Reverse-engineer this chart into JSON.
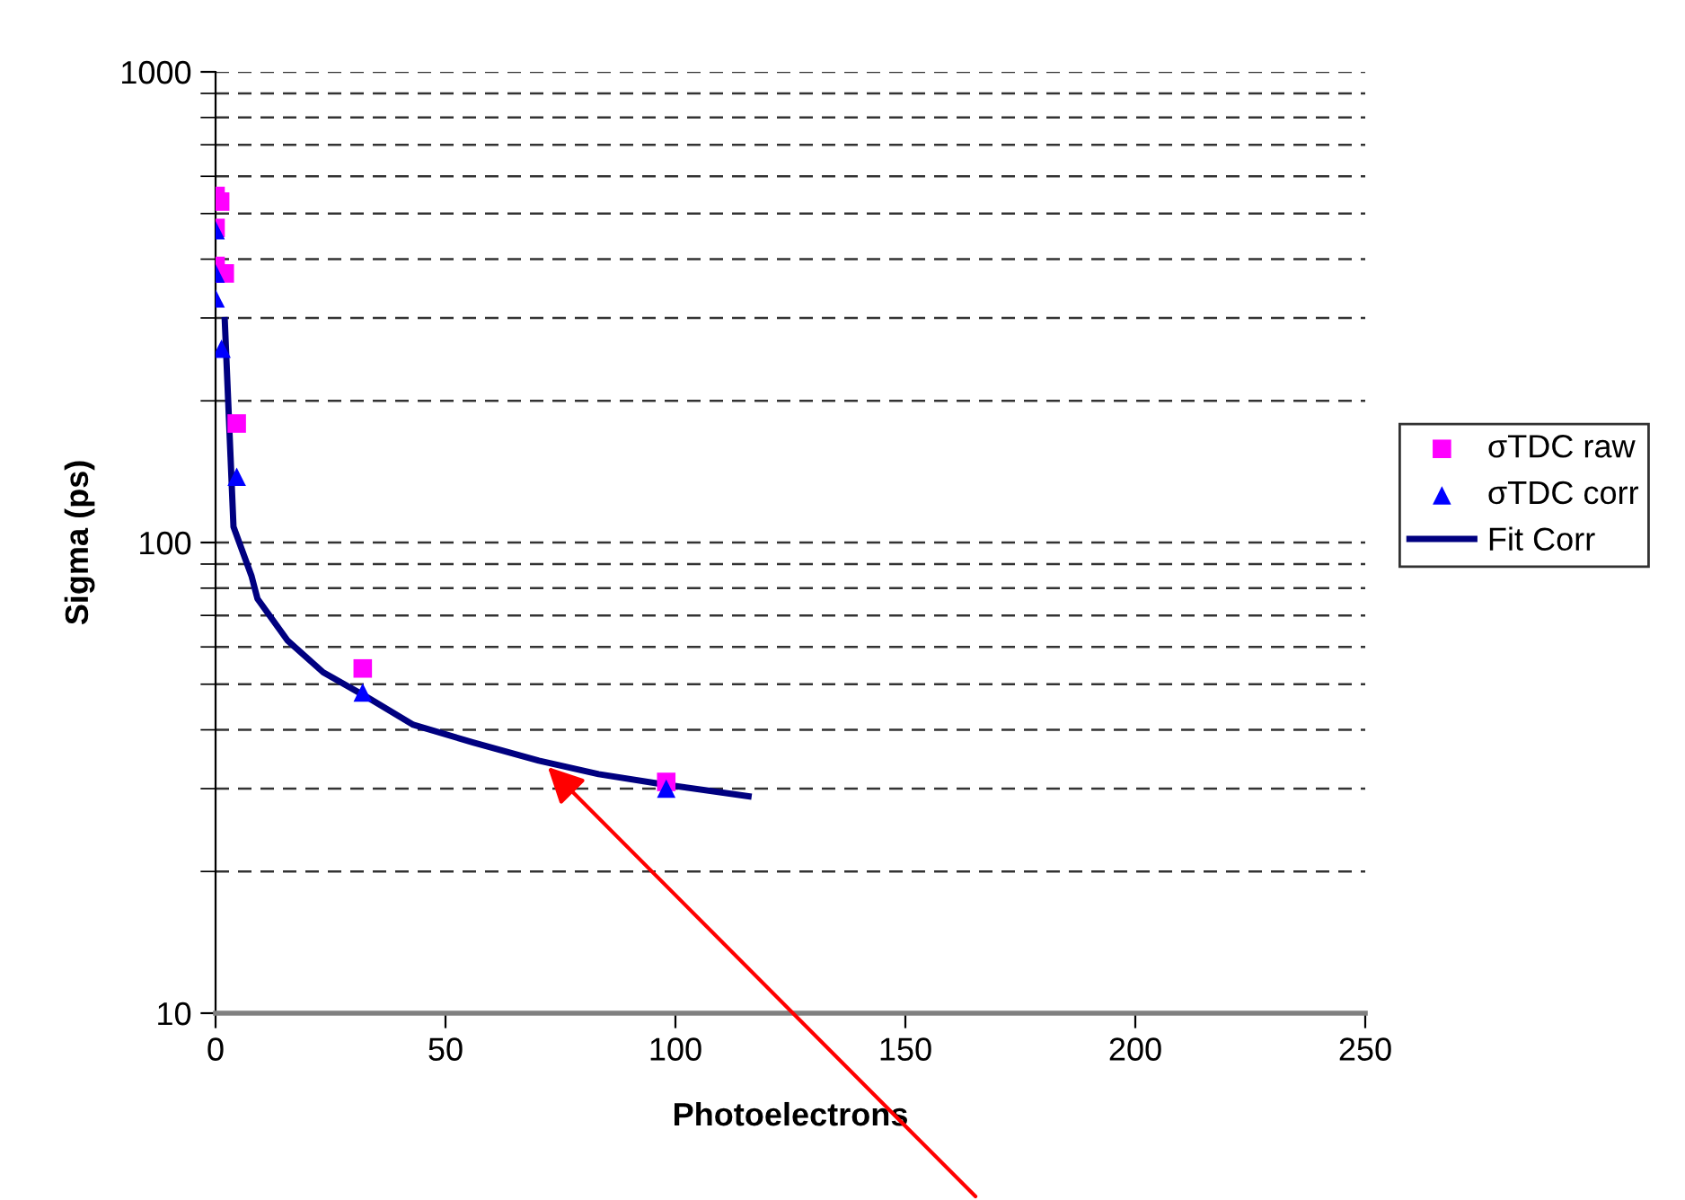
{
  "chart_data": {
    "type": "scatter",
    "xlabel": "Photoelectrons",
    "ylabel": "Sigma (ps)",
    "log": "y",
    "xlim": [
      0,
      250
    ],
    "xticks": [
      0,
      50,
      100,
      150,
      200,
      250
    ],
    "ylim": [
      10,
      1000
    ],
    "yticks": [
      10,
      100,
      1000
    ],
    "grid": "y",
    "legend": "right",
    "series": [
      {
        "name": "σTDC raw",
        "marker": "square",
        "color": "#ff00ff",
        "x": [
          0,
          1,
          0,
          0,
          2,
          4.6,
          32,
          98
        ],
        "values": [
          545,
          530,
          466,
          387,
          373,
          179,
          54,
          31
        ]
      },
      {
        "name": "σTDC corr",
        "marker": "triangle",
        "color": "#0000ff",
        "x": [
          0,
          0,
          0,
          1.3,
          4.6,
          32,
          98
        ],
        "values": [
          461,
          373,
          330,
          258,
          138,
          48,
          30
        ]
      },
      {
        "name": "Fit Corr",
        "type": "line",
        "marker": "none",
        "line_style": "solid",
        "color": "#000080",
        "x": [
          2,
          3.9,
          7.8,
          9.1,
          15.6,
          23.4,
          32.5,
          43,
          56,
          70.3,
          83.3,
          97.7,
          115.9
        ],
        "values": [
          297,
          108,
          85,
          76,
          62,
          53,
          47.2,
          41,
          37.6,
          34.4,
          32.2,
          30.6,
          28.9
        ]
      }
    ]
  }
}
